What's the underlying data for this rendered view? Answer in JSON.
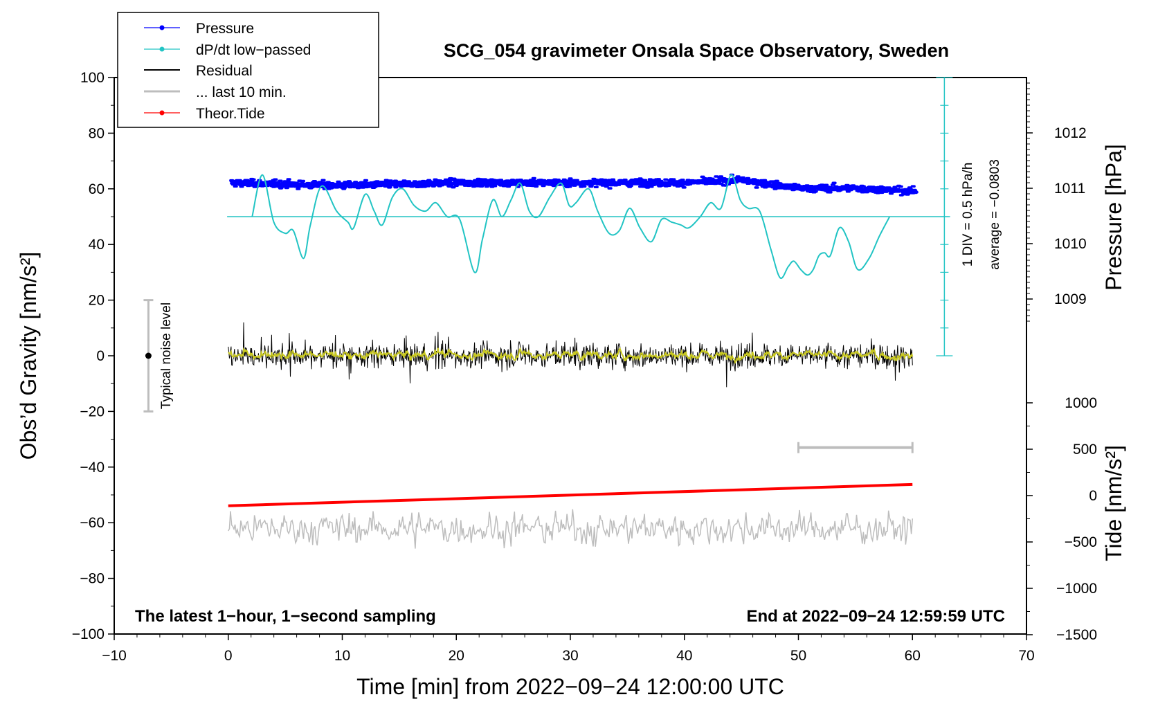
{
  "chart_data": {
    "type": "line",
    "title": "SCG_054 gravimeter Onsala Space Observatory, Sweden",
    "xlabel": "Time [min] from 2022−09−24 12:00:00 UTC",
    "ylabel_left": "Obs’d Gravity [nm/s²]",
    "ylabel_right_top": "Pressure [hPa]",
    "ylabel_right_bottom": "Tide [nm/s²]",
    "xlim": [
      -10,
      70
    ],
    "ylim": [
      -100,
      100
    ],
    "x_ticks": [
      "−10",
      "0",
      "10",
      "20",
      "30",
      "40",
      "50",
      "60",
      "70"
    ],
    "y_ticks": [
      "100",
      "80",
      "60",
      "40",
      "20",
      "0",
      "−20",
      "−40",
      "−60",
      "−80",
      "−100"
    ],
    "pressure_ticks": [
      "1012",
      "1011",
      "1010",
      "1009"
    ],
    "tide_ticks": [
      "1000",
      "500",
      "0",
      "−500",
      "−1000",
      "−1500"
    ],
    "legend": [
      "Pressure",
      "dP/dt low−passed",
      "Residual",
      "... last 10 min.",
      "Theor.Tide"
    ],
    "footer_left": "The latest 1−hour, 1−second sampling",
    "footer_right": "End at 2022−09−24 12:59:59 UTC",
    "noise_label": "Typical noise level",
    "noise_bar": {
      "x": -7,
      "center": 0,
      "low": -20,
      "high": 20
    },
    "dpdt_scale_label": "1 DIV = 0.5 hPa/h",
    "dpdt_average_label": "average = −0.0803",
    "colors": {
      "pressure": "#0000ff",
      "dpdt": "#22c4c4",
      "residual": "#000000",
      "residual_smooth": "#c8c820",
      "last10": "#bdbdbd",
      "tide": "#ff0000"
    },
    "series": [
      {
        "name": "Pressure",
        "unit": "hPa",
        "x": [
          0,
          10,
          20,
          30,
          40,
          45,
          50,
          55,
          60
        ],
        "values": [
          1011.1,
          1011.05,
          1011.1,
          1011.1,
          1011.1,
          1011.15,
          1011.0,
          1011.0,
          1010.95
        ]
      },
      {
        "name": "dP/dt low−passed",
        "baseline_gravity_units": 50,
        "x": [
          2.1,
          3,
          4,
          5,
          5.7,
          6.6,
          7.2,
          8.2,
          9.5,
          10.5,
          11,
          12,
          12.8,
          13.5,
          14.4,
          15.3,
          16.3,
          17.3,
          18.2,
          19.2,
          20.3,
          21.6,
          22.3,
          23.2,
          24,
          24.8,
          25.6,
          26.4,
          27.2,
          28.2,
          29.2,
          29.9,
          30.5,
          31.6,
          32.4,
          33.4,
          34.3,
          35.2,
          36.1,
          37.1,
          38,
          38.9,
          39.7,
          40.4,
          41.4,
          42.3,
          43.2,
          44.1,
          44.9,
          45.6,
          46.6,
          47.6,
          48.4,
          49.1,
          49.6,
          50.2,
          50.8,
          51.3,
          51.8,
          52.3,
          52.8,
          53.6,
          54.4,
          55.2,
          56.2,
          57.1,
          58
        ],
        "values": [
          50,
          65,
          48,
          44,
          45,
          35,
          47,
          61,
          52,
          48,
          46,
          58,
          52,
          47,
          57,
          60,
          54,
          52,
          55,
          50,
          49,
          30,
          42,
          56,
          50,
          56,
          62,
          52,
          50,
          57,
          62,
          54,
          55,
          60,
          52,
          44,
          45,
          53,
          46,
          41,
          49,
          48,
          47,
          46,
          50,
          55,
          53,
          65,
          56,
          53,
          52,
          38,
          28,
          32,
          34,
          31,
          29,
          31,
          36,
          37,
          36,
          46,
          41,
          31,
          35,
          43,
          50
        ]
      },
      {
        "name": "Residual",
        "x": [
          0,
          60
        ],
        "values": [
          0,
          0
        ],
        "range": [
          -15,
          12
        ]
      },
      {
        "name": "... last 10 min.",
        "plotted_offset": -62,
        "x": [
          0,
          60
        ],
        "values": [
          -62,
          -62
        ]
      },
      {
        "name": "Theor.Tide",
        "unit": "nm/s²",
        "x": [
          0,
          60
        ],
        "values": [
          -110,
          120
        ]
      }
    ]
  }
}
